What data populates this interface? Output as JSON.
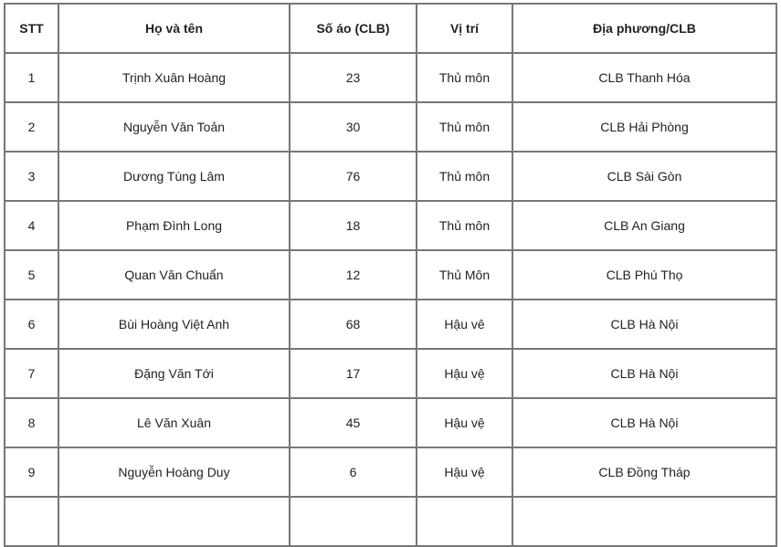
{
  "table": {
    "headers": [
      "STT",
      "Họ và tên",
      "Số áo (CLB)",
      "Vị trí",
      "Địa phương/CLB"
    ],
    "rows": [
      [
        "1",
        "Trịnh Xuân Hoàng",
        "23",
        "Thủ môn",
        "CLB Thanh Hóa"
      ],
      [
        "2",
        "Nguyễn Văn Toản",
        "30",
        "Thủ môn",
        "CLB Hải Phòng"
      ],
      [
        "3",
        "Dương Tùng Lâm",
        "76",
        "Thủ môn",
        "CLB Sài Gòn"
      ],
      [
        "4",
        "Phạm Đình Long",
        "18",
        "Thủ môn",
        "CLB An Giang"
      ],
      [
        "5",
        "Quan Văn Chuẩn",
        "12",
        "Thủ Môn",
        "CLB Phú Thọ"
      ],
      [
        "6",
        "Bùi Hoàng Việt Anh",
        "68",
        "Hậu vê",
        "CLB Hà Nội"
      ],
      [
        "7",
        "Đặng Văn Tới",
        "17",
        "Hậu vệ",
        "CLB Hà Nội"
      ],
      [
        "8",
        "Lê Văn Xuân",
        "45",
        "Hậu vệ",
        "CLB Hà Nội"
      ],
      [
        "9",
        "Nguyễn Hoàng Duy",
        "6",
        "Hậu vệ",
        "CLB Đồng Tháp"
      ]
    ]
  }
}
